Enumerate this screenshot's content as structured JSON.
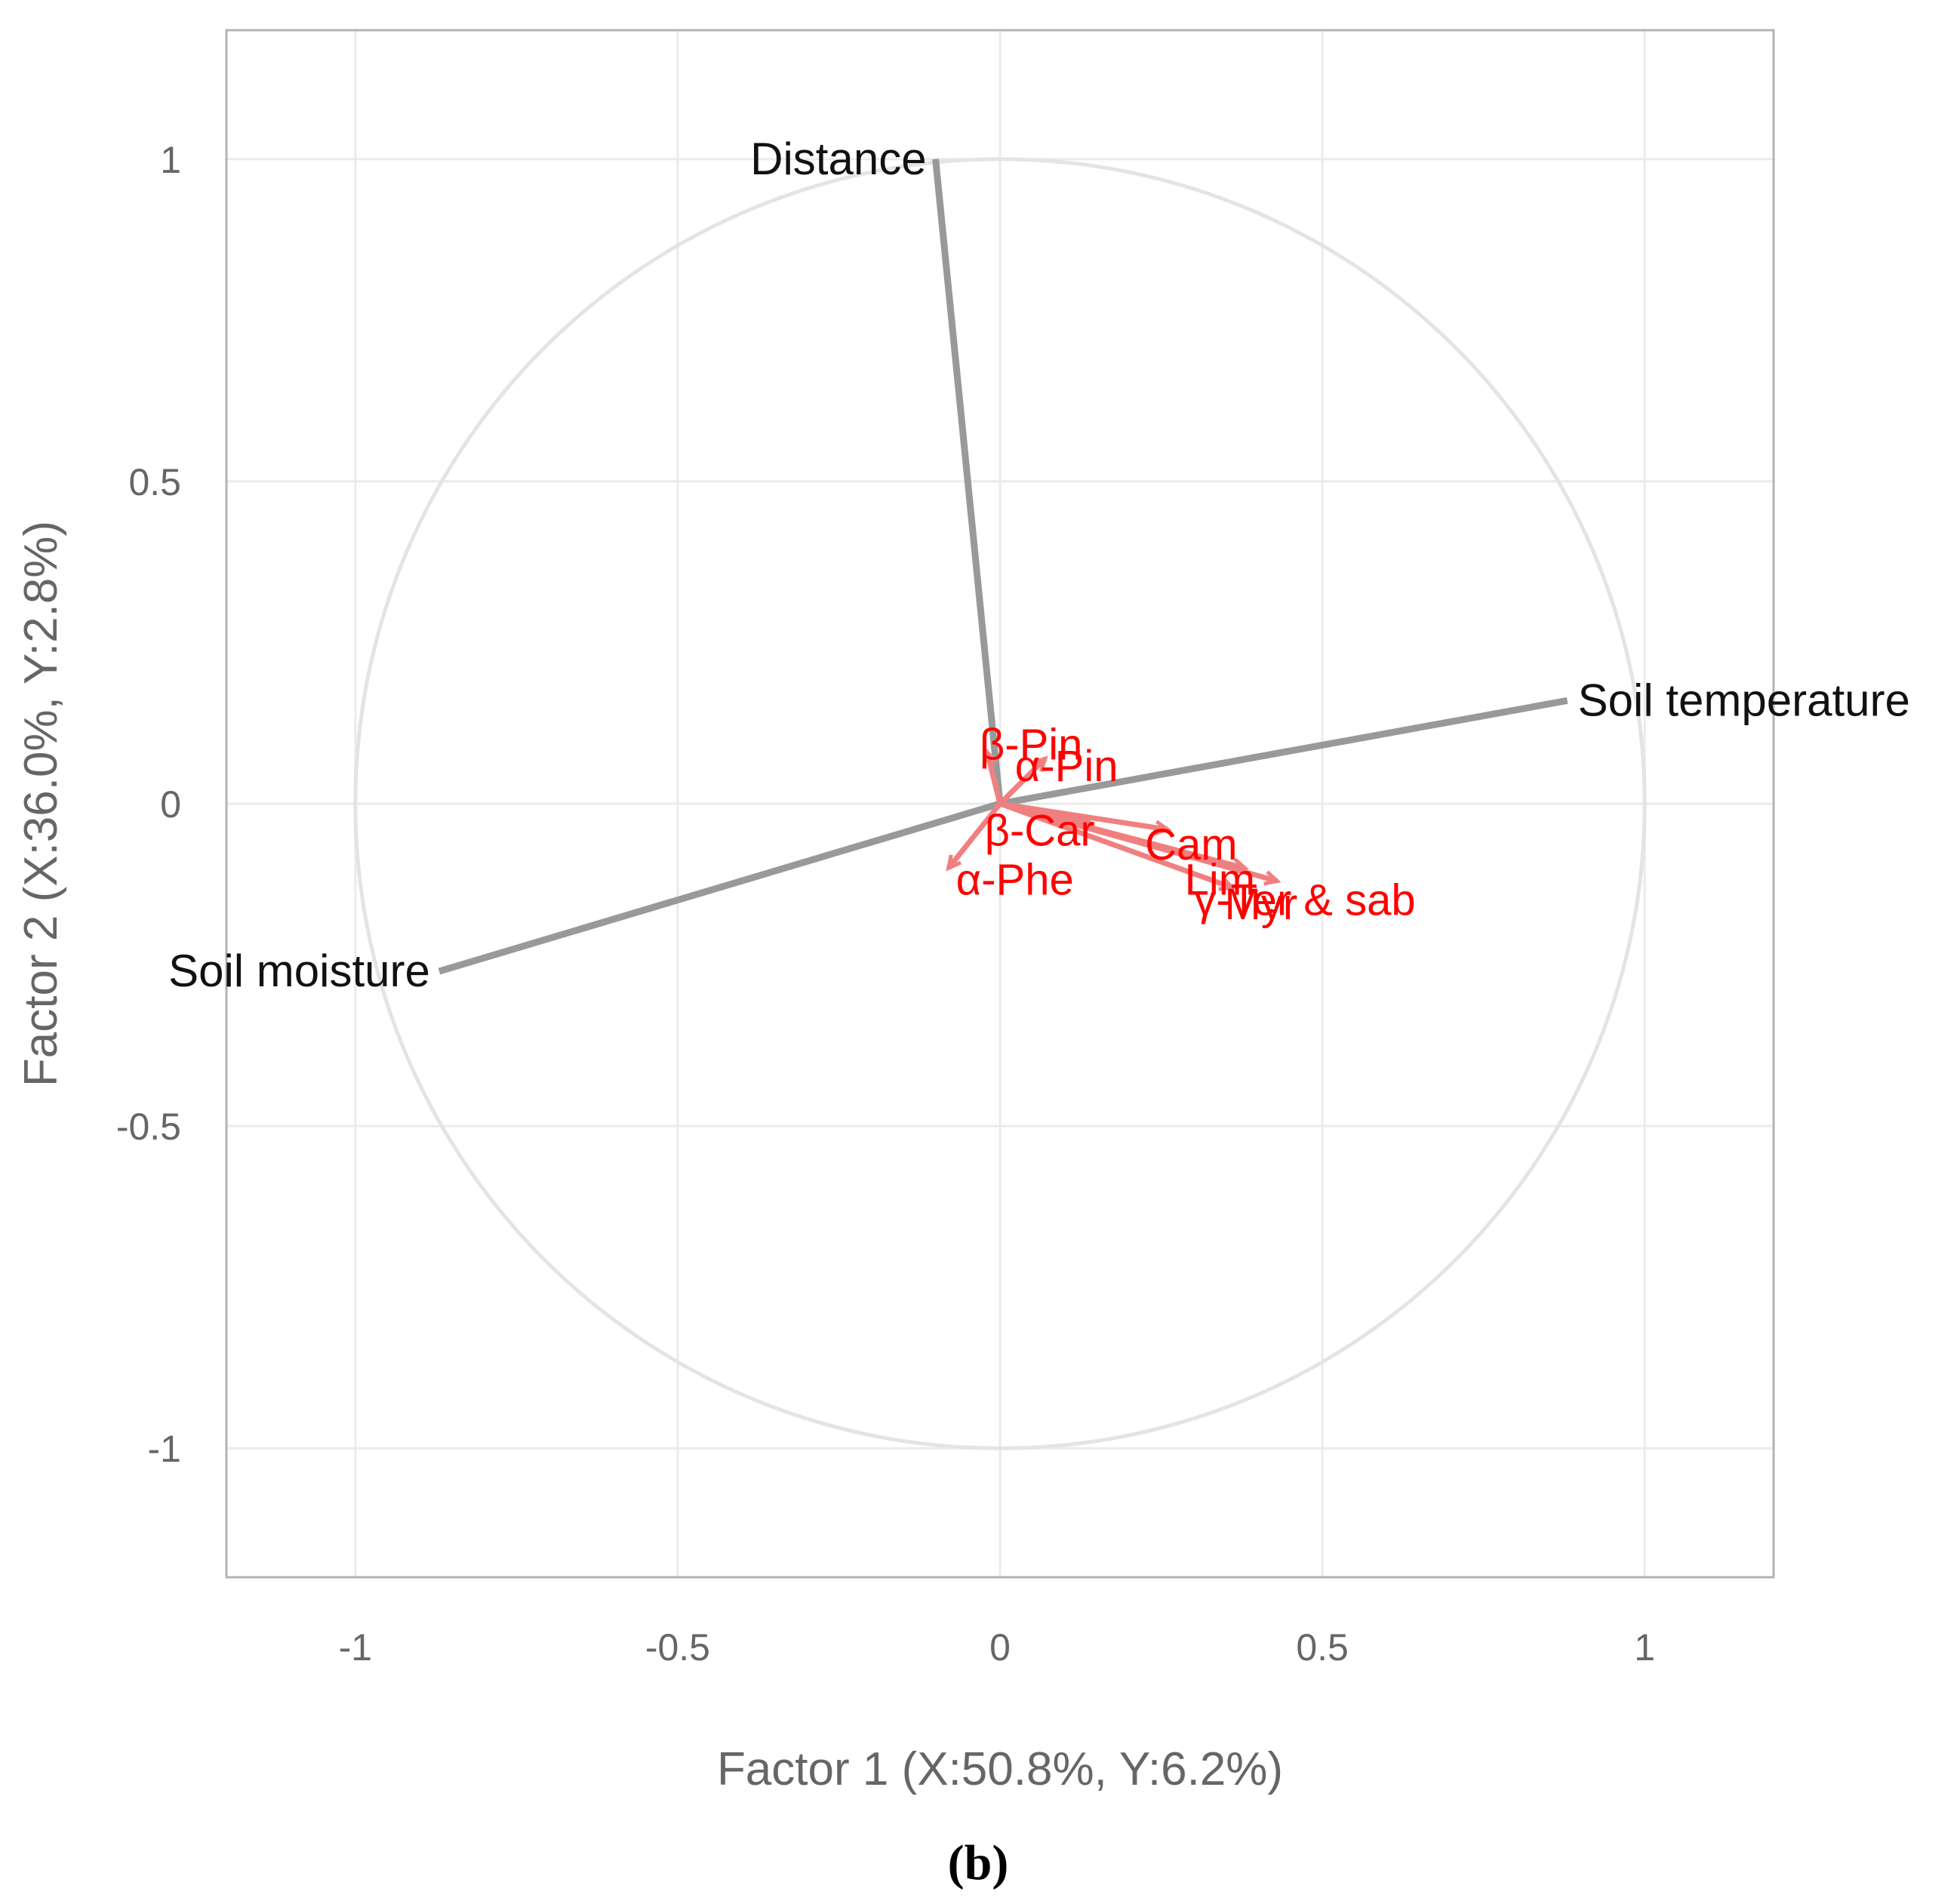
{
  "chart_data": {
    "type": "scatter",
    "subtype": "biplot-loadings",
    "xlabel": "Factor 1 (X:50.8%, Y:6.2%)",
    "ylabel": "Factor 2 (X:36.0%, Y:2.8%)",
    "xlim": [
      -1.2,
      1.2
    ],
    "ylim": [
      -1.2,
      1.2
    ],
    "x_ticks": [
      -1,
      -0.5,
      0,
      0.5,
      1
    ],
    "y_ticks": [
      -1,
      -0.5,
      0,
      0.5,
      1
    ],
    "x_tick_labels": [
      "-1",
      "-0.5",
      "0",
      "0.5",
      "1"
    ],
    "y_tick_labels": [
      "-1",
      "-0.5",
      "0",
      "0.5",
      "1"
    ],
    "grid": true,
    "unit_circle": true,
    "caption": "(b)",
    "series": [
      {
        "name": "",
        "group": "environmental",
        "color": "#999999",
        "points": [
          {
            "label": "Distance",
            "x": -0.1,
            "y": 1.0
          },
          {
            "label": "Soil temperature",
            "x": 0.88,
            "y": 0.16
          },
          {
            "label": "Soil moisture",
            "x": -0.87,
            "y": -0.26
          }
        ]
      },
      {
        "name": "",
        "group": "terpenes",
        "color": "#f08080",
        "label_color": "#ff0000",
        "points": [
          {
            "label": "β-Pin",
            "x": -0.02,
            "y": 0.08
          },
          {
            "label": "α-Pin",
            "x": 0.07,
            "y": 0.07
          },
          {
            "label": "β-Car",
            "x": 0.14,
            "y": -0.03
          },
          {
            "label": "Cam",
            "x": 0.26,
            "y": -0.04
          },
          {
            "label": "α-Phe",
            "x": -0.08,
            "y": -0.1
          },
          {
            "label": "Lim",
            "x": 0.38,
            "y": -0.1
          },
          {
            "label": "γ-Ter & sab",
            "x": 0.43,
            "y": -0.12
          },
          {
            "label": "Myr",
            "x": 0.36,
            "y": -0.13
          }
        ]
      }
    ]
  }
}
